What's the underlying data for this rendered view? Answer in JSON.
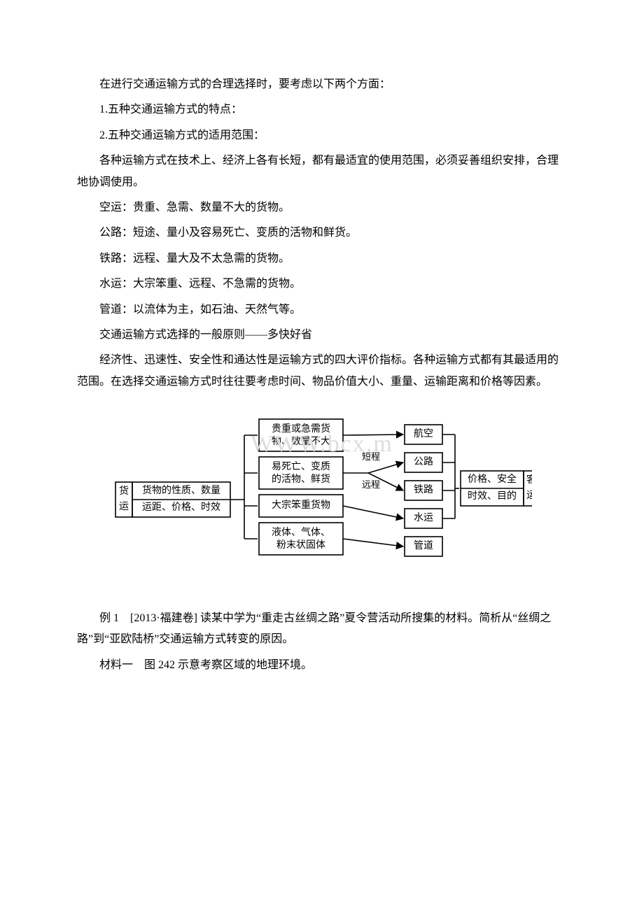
{
  "paragraphs": {
    "p1": "在进行交通运输方式的合理选择时，要考虑以下两个方面：",
    "p2": "1.五种交通运输方式的特点：",
    "p3": "2.五种交通运输方式的适用范围：",
    "p4": "各种运输方式在技术上、经济上各有长短，都有最适宜的使用范围，必须妥善组织安排，合理地协调使用。",
    "p5": "空运：贵重、急需、数量不大的货物。",
    "p6": "公路：短途、量小及容易死亡、变质的活物和鲜货。",
    "p7": "铁路：远程、量大及不太急需的货物。",
    "p8": "水运：大宗笨重、远程、不急需的货物。",
    "p9": "管道：以流体为主，如石油、天然气等。",
    "p10": "交通运输方式选择的一般原则——多快好省",
    "p11": "经济性、迅速性、安全性和通达性是运输方式的四大评价指标。各种运输方式都有其最适用的范围。在选择交通运输方式时往往要考虑时间、物品价值大小、重量、运输距离和价格等因素。",
    "p12": "例 1　[2013·福建卷] 读某中学为“重走古丝绸之路”夏令营活动所搜集的材料。简析从“丝绸之路”到“亚欧陆桥”交通运输方式转变的原因。",
    "p13": "材料一　图 242 示意考察区域的地理环境。"
  },
  "watermark": "WWW.bcx.m",
  "diagram": {
    "type": "flowchart",
    "background_color": "#ffffff",
    "stroke_color": "#000000",
    "text_color": "#000000",
    "font_size": 14,
    "small_font_size": 13,
    "stroke_width": 1.6,
    "nodes": {
      "left_freight_top": "货",
      "left_freight_bot": "运",
      "left_upper": "货物的性质、数量",
      "left_lower": "运距、价格、时效",
      "mid1_l1": "贵重或急需货",
      "mid1_l2": "物、数量不大",
      "mid2_l1": "易死亡、变质",
      "mid2_l2": "的活物、鲜货",
      "mid3": "大宗笨重货物",
      "mid4_l1": "液体、气体、",
      "mid4_l2": "粉末状固体",
      "edge_short": "短程",
      "edge_long": "远程",
      "right1": "航空",
      "right2": "公路",
      "right3": "铁路",
      "right4": "水运",
      "right5": "管道",
      "far_upper": "价格、安全",
      "far_lower": "时效、目的",
      "far_pass_top": "客",
      "far_pass_bot": "运"
    }
  }
}
